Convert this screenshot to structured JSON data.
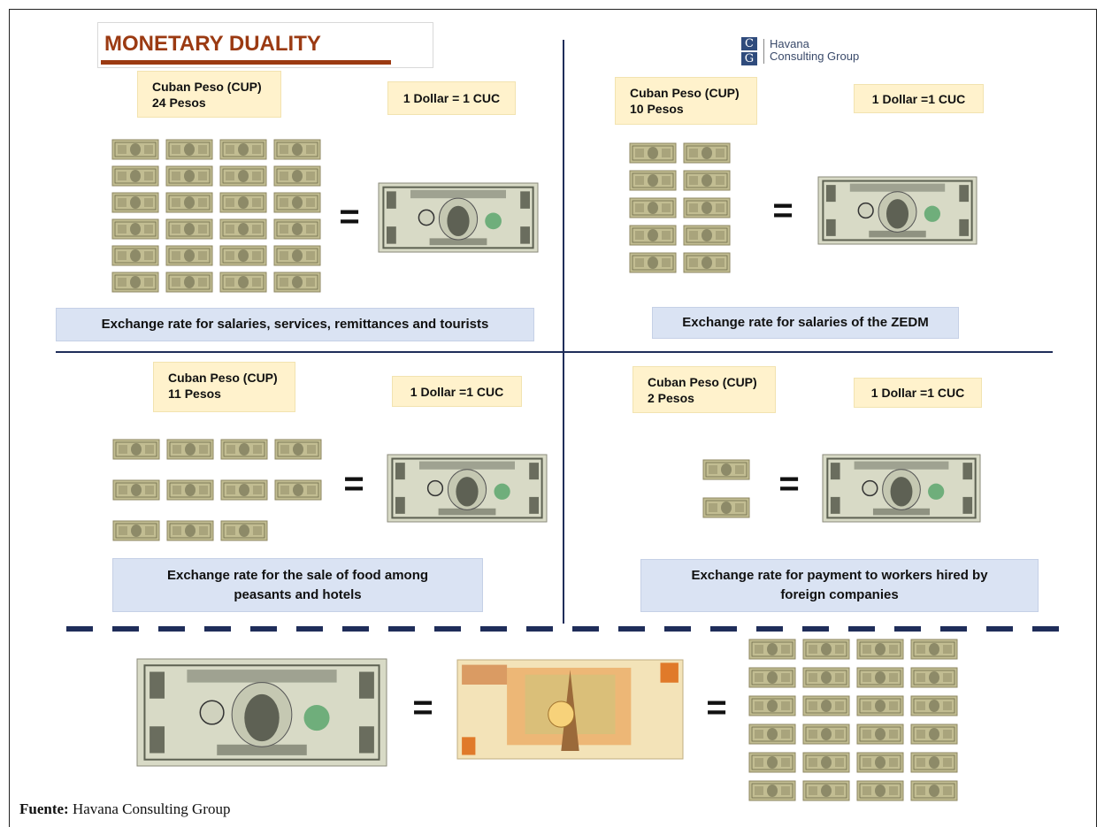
{
  "header": {
    "title": "MONETARY DUALITY",
    "logo": {
      "mark": [
        "C",
        "G"
      ],
      "line1": "Havana",
      "line2": "Consulting Group"
    }
  },
  "quadrants": [
    {
      "currency": "Cuban Peso (CUP)",
      "amount": "24 Pesos",
      "rate": "1 Dollar = 1 CUC",
      "equals": "=",
      "caption": [
        "Exchange rate for salaries, services, remittances and tourists"
      ]
    },
    {
      "currency": "Cuban Peso (CUP)",
      "amount": "10 Pesos",
      "rate": "1 Dollar =1 CUC",
      "equals": "=",
      "caption": [
        "Exchange rate for salaries of the ZEDM"
      ]
    },
    {
      "currency": "Cuban Peso (CUP)",
      "amount": "11 Pesos",
      "rate": "1 Dollar =1 CUC",
      "equals": "=",
      "caption": [
        "Exchange rate for the sale of food among",
        "peasants and hotels"
      ]
    },
    {
      "currency": "Cuban Peso (CUP)",
      "amount": "2 Pesos",
      "rate": "1 Dollar =1 CUC",
      "equals": "=",
      "caption": [
        "Exchange rate for payment to workers hired by",
        "foreign companies"
      ]
    }
  ],
  "bottom": {
    "equals": [
      "=",
      "="
    ]
  },
  "footer": {
    "label": "Fuente:",
    "source": "Havana Consulting Group"
  }
}
